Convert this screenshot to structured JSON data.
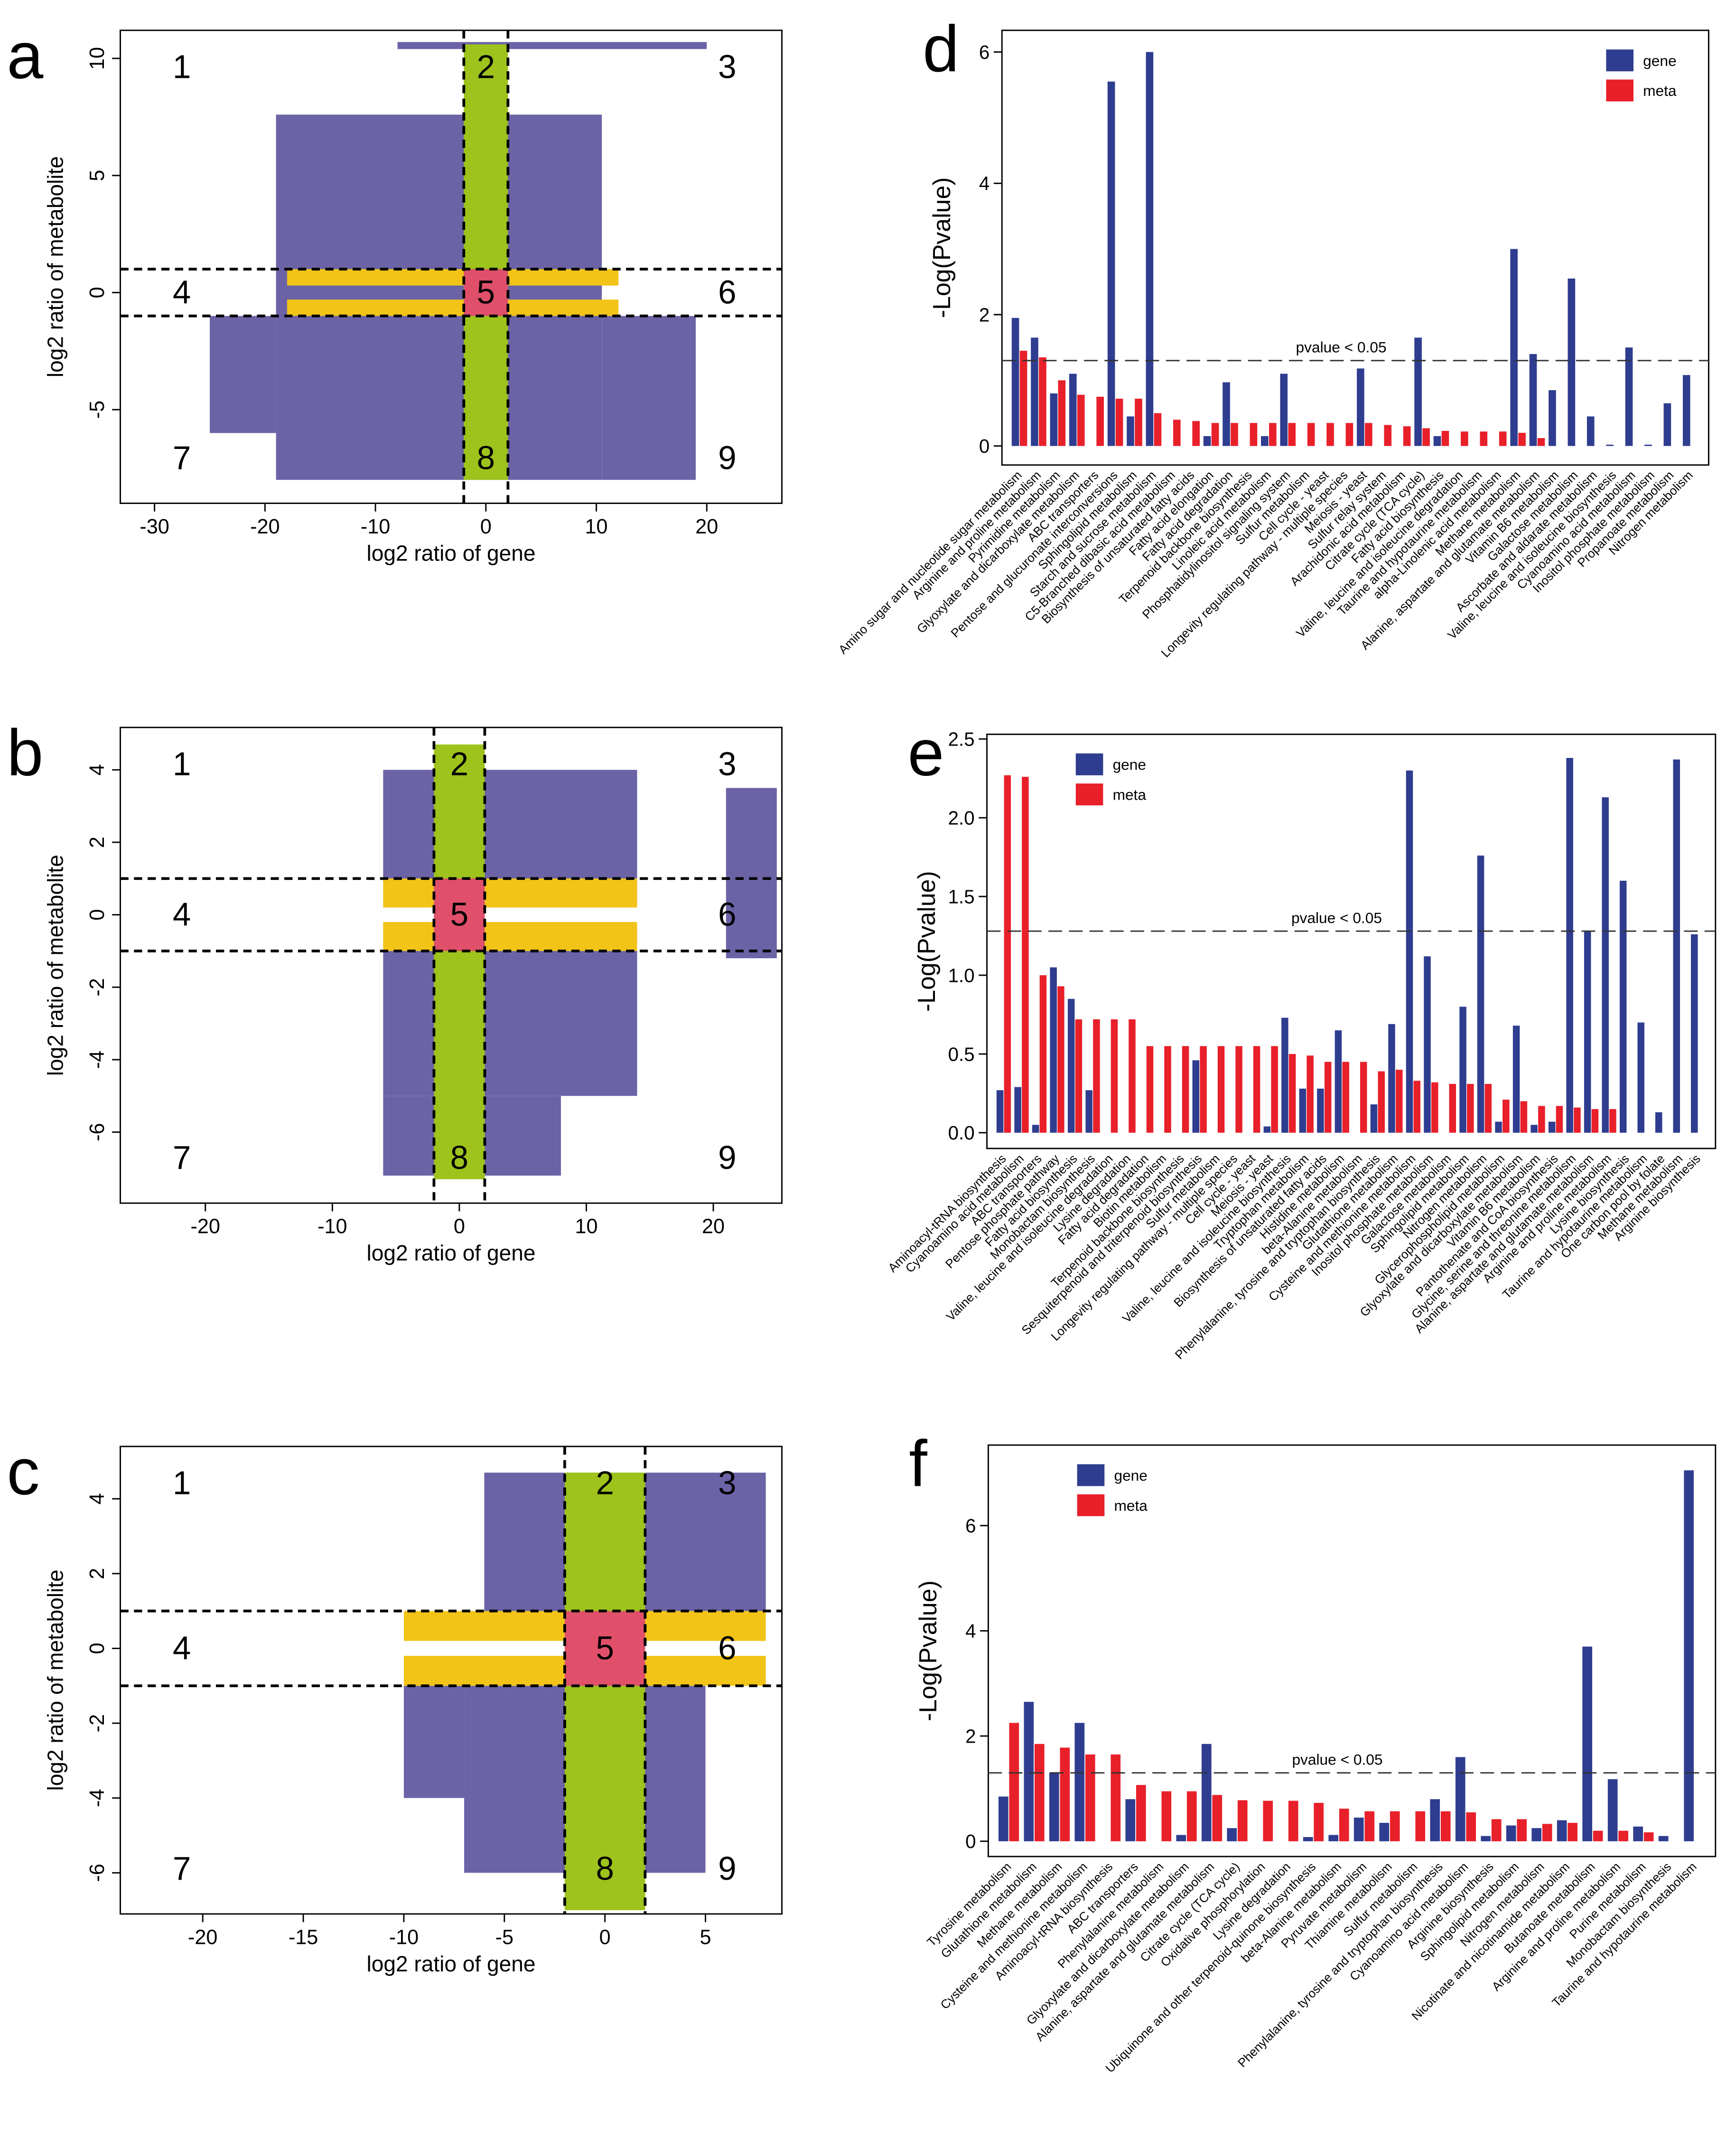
{
  "chart_data": [
    {
      "type": "scatter",
      "label": "a",
      "xlabel": "log2 ratio of gene",
      "ylabel": "log2 ratio of metabolite",
      "xlim": [
        -33.1,
        26.8
      ],
      "ylim": [
        -9,
        11.2
      ],
      "xticks": [
        -30,
        -20,
        -10,
        0,
        10,
        20
      ],
      "yticks": [
        -5,
        0,
        5,
        10
      ],
      "vlines": [
        -2,
        2
      ],
      "hlines": [
        -1,
        1
      ],
      "quadrants": [
        "1",
        "2",
        "3",
        "4",
        "5",
        "6",
        "7",
        "8",
        "9"
      ],
      "regions": [
        {
          "x": [
            -19,
            10.5
          ],
          "y": [
            -8,
            7.6
          ],
          "color": "#6b63a6"
        },
        {
          "x": [
            -8,
            20
          ],
          "y": [
            10.4,
            10.7
          ],
          "color": "#6b63a6"
        },
        {
          "x": [
            -25,
            -19
          ],
          "y": [
            -6,
            -1
          ],
          "color": "#6b63a6"
        },
        {
          "x": [
            10.5,
            19
          ],
          "y": [
            -8,
            -1
          ],
          "color": "#6b63a6"
        },
        {
          "x": [
            -18,
            12
          ],
          "y": [
            0.3,
            1
          ],
          "color": "#f2c418"
        },
        {
          "x": [
            -18,
            12
          ],
          "y": [
            -1,
            -0.3
          ],
          "color": "#f2c418"
        },
        {
          "x": [
            -2,
            2
          ],
          "y": [
            -8,
            10.6
          ],
          "color": "#9dc31c"
        },
        {
          "x": [
            -2,
            2
          ],
          "y": [
            -1,
            1
          ],
          "color": "#e0506a"
        }
      ]
    },
    {
      "type": "bar",
      "label": "d",
      "ylabel": "-Log(Pvalue)",
      "ylim": [
        -0.29,
        6.33
      ],
      "yticks": [
        0,
        2,
        4,
        6
      ],
      "threshold": 1.3,
      "annotation": "pvalue < 0.05",
      "legend": "top-right",
      "categories": [
        "Amino sugar and nucleotide sugar metabolism",
        "Arginine and proline metabolism",
        "Pyrimidine metabolism",
        "Glyoxylate and dicarboxylate metabolism",
        "ABC transporters",
        "Pentose and glucuronate interconversions",
        "Sphingolipid metabolism",
        "Starch and sucrose metabolism",
        "C5-Branched dibasic acid metabolism",
        "Biosynthesis of unsaturated fatty acids",
        "Fatty acid elongation",
        "Fatty acid degradation",
        "Terpenoid backbone biosynthesis",
        "Linoleic acid metabolism",
        "Phosphatidylinositol signaling system",
        "Sulfur metabolism",
        "Cell cycle - yeast",
        "Longevity regulating pathway - multiple species",
        "Meiosis - yeast",
        "Sulfur relay system",
        "Arachidonic acid metabolism",
        "Citrate cycle (TCA cycle)",
        "Fatty acid biosynthesis",
        "Valine, leucine and isoleucine degradation",
        "Taurine and hypotaurine metabolism",
        "alpha-Linolenic acid metabolism",
        "Methane metabolism",
        "Alanine, aspartate and glutamate metabolism",
        "Vitamin B6 metabolism",
        "Galactose metabolism",
        "Ascorbate and aldarate metabolism",
        "Valine, leucine and isoleucine biosynthesis",
        "Cyanoamino acid metabolism",
        "Inositol phosphate metabolism",
        "Propanoate metabolism",
        "Nitrogen metabolism"
      ],
      "series": [
        {
          "name": "gene",
          "color": "#2e3d8f",
          "values": [
            1.95,
            1.65,
            0.8,
            1.1,
            0,
            5.55,
            0.45,
            6.0,
            0,
            0,
            0.15,
            0.97,
            0,
            0.15,
            1.1,
            0,
            0,
            0,
            1.18,
            0,
            0,
            1.65,
            0.15,
            0,
            0,
            0,
            3.0,
            1.4,
            0.85,
            2.55,
            0.45,
            0.02,
            1.5,
            0.02,
            0.65,
            1.08
          ]
        },
        {
          "name": "meta",
          "color": "#e8202a",
          "values": [
            1.45,
            1.35,
            1.0,
            0.78,
            0.75,
            0.72,
            0.72,
            0.5,
            0.4,
            0.38,
            0.35,
            0.35,
            0.35,
            0.35,
            0.35,
            0.35,
            0.35,
            0.35,
            0.35,
            0.32,
            0.3,
            0.27,
            0.23,
            0.22,
            0.22,
            0.22,
            0.2,
            0.12,
            0,
            0,
            0,
            0,
            0,
            0,
            0,
            0
          ]
        }
      ]
    },
    {
      "type": "scatter",
      "label": "b",
      "xlabel": "log2 ratio of gene",
      "ylabel": "log2 ratio of metabolite",
      "xlim": [
        -26.7,
        25.4
      ],
      "ylim": [
        -7.96,
        5.17
      ],
      "xticks": [
        -20,
        -10,
        0,
        10,
        20
      ],
      "yticks": [
        -6,
        -4,
        -2,
        0,
        2,
        4
      ],
      "vlines": [
        -2,
        2
      ],
      "hlines": [
        -1,
        1
      ],
      "quadrants": [
        "1",
        "2",
        "3",
        "4",
        "5",
        "6",
        "7",
        "8",
        "9"
      ],
      "regions": [
        {
          "x": [
            -6,
            14
          ],
          "y": [
            1,
            4
          ],
          "color": "#6b63a6"
        },
        {
          "x": [
            -6,
            14
          ],
          "y": [
            -5,
            -1
          ],
          "color": "#6b63a6"
        },
        {
          "x": [
            -6,
            8
          ],
          "y": [
            -7.2,
            -5
          ],
          "color": "#6b63a6"
        },
        {
          "x": [
            21,
            25
          ],
          "y": [
            -1.2,
            3.5
          ],
          "color": "#6b63a6"
        },
        {
          "x": [
            -6,
            14
          ],
          "y": [
            0.2,
            1
          ],
          "color": "#f2c418"
        },
        {
          "x": [
            -6,
            14
          ],
          "y": [
            -1,
            -0.2
          ],
          "color": "#f2c418"
        },
        {
          "x": [
            -2,
            2
          ],
          "y": [
            -7.3,
            4.7
          ],
          "color": "#9dc31c"
        },
        {
          "x": [
            -2,
            2
          ],
          "y": [
            -1,
            1
          ],
          "color": "#e0506a"
        }
      ]
    },
    {
      "type": "bar",
      "label": "e",
      "ylabel": "-Log(Pvalue)",
      "ylim": [
        -0.1,
        2.53
      ],
      "yticks": [
        {
          "value": 0,
          "label": "0.0"
        },
        0.5,
        {
          "value": 1,
          "label": "1.0"
        },
        1.5,
        {
          "value": 2,
          "label": "2.0"
        },
        2.5
      ],
      "threshold": 1.28,
      "annotation": "pvalue < 0.05",
      "legend": "top-left",
      "categories": [
        "Aminoacyl-tRNA biosynthesis",
        "Cyanoamino acid metabolism",
        "ABC transporters",
        "Pentose phosphate pathway",
        "Fatty acid biosynthesis",
        "Monobactam biosynthesis",
        "Valine, leucine and isoleucine degradation",
        "Lysine degradation",
        "Fatty acid degradation",
        "Biotin metabolism",
        "Terpenoid backbone biosynthesis",
        "Sesquiterpenoid and triterpenoid biosynthesis",
        "Sulfur metabolism",
        "Longevity regulating pathway - multiple species",
        "Cell cycle - yeast",
        "Meiosis - yeast",
        "Valine, leucine and isoleucine biosynthesis",
        "Tryptophan metabolism",
        "Biosynthesis of unsaturated fatty acids",
        "Histidine metabolism",
        "beta-Alanine metabolism",
        "Phenylalanine, tyrosine and tryptophan biosynthesis",
        "Glutathione metabolism",
        "Cysteine and methionine metabolism",
        "Inositol phosphate metabolism",
        "Galactose metabolism",
        "Sphingolipid metabolism",
        "Nitrogen metabolism",
        "Glycerophospholipid metabolism",
        "Glyoxylate and dicarboxylate metabolism",
        "Vitamin B6 metabolism",
        "Pantothenate and CoA biosynthesis",
        "Glycine, serine and threonine metabolism",
        "Alanine, aspartate and glutamate metabolism",
        "Arginine and proline metabolism",
        "Lysine biosynthesis",
        "Taurine and hypotaurine metabolism",
        "One carbon pool by folate",
        "Methane metabolism",
        "Arginine biosynthesis"
      ],
      "series": [
        {
          "name": "gene",
          "color": "#2e3d8f",
          "values": [
            0.27,
            0.29,
            0.05,
            1.05,
            0.85,
            0.27,
            0,
            0,
            0,
            0,
            0,
            0.46,
            0,
            0,
            0,
            0.04,
            0.73,
            0.28,
            0.28,
            0.65,
            0,
            0.18,
            0.69,
            2.3,
            1.12,
            0,
            0.8,
            1.76,
            0.07,
            0.68,
            0.05,
            0.07,
            2.38,
            1.28,
            2.13,
            1.6,
            0.7,
            0.13,
            2.37,
            1.26
          ]
        },
        {
          "name": "meta",
          "color": "#e8202a",
          "values": [
            2.27,
            2.26,
            1.0,
            0.93,
            0.72,
            0.72,
            0.72,
            0.72,
            0.55,
            0.55,
            0.55,
            0.55,
            0.55,
            0.55,
            0.55,
            0.55,
            0.5,
            0.49,
            0.45,
            0.45,
            0.45,
            0.39,
            0.4,
            0.33,
            0.32,
            0.31,
            0.31,
            0.31,
            0.21,
            0.2,
            0.17,
            0.17,
            0.16,
            0.15,
            0.15,
            0,
            0,
            0,
            0,
            0
          ]
        }
      ]
    },
    {
      "type": "scatter",
      "label": "c",
      "xlabel": "log2 ratio of gene",
      "ylabel": "log2 ratio of metabolite",
      "xlim": [
        -24.1,
        8.8
      ],
      "ylim": [
        -7.1,
        5.4
      ],
      "xticks": [
        -20,
        -15,
        -10,
        -5,
        0,
        5
      ],
      "yticks": [
        -6,
        -4,
        -2,
        0,
        2,
        4
      ],
      "vlines": [
        -2,
        2
      ],
      "hlines": [
        -1,
        1
      ],
      "quadrants": [
        "1",
        "2",
        "3",
        "4",
        "5",
        "6",
        "7",
        "8",
        "9"
      ],
      "regions": [
        {
          "x": [
            -6,
            8
          ],
          "y": [
            1,
            4.7
          ],
          "color": "#6b63a6"
        },
        {
          "x": [
            -7,
            5
          ],
          "y": [
            -6,
            -1
          ],
          "color": "#6b63a6"
        },
        {
          "x": [
            -10,
            -7
          ],
          "y": [
            -4,
            -1
          ],
          "color": "#6b63a6"
        },
        {
          "x": [
            -10,
            8
          ],
          "y": [
            0.2,
            1
          ],
          "color": "#f2c418"
        },
        {
          "x": [
            -10,
            8
          ],
          "y": [
            -1,
            -0.2
          ],
          "color": "#f2c418"
        },
        {
          "x": [
            -2,
            2
          ],
          "y": [
            -7,
            4.7
          ],
          "color": "#9dc31c"
        },
        {
          "x": [
            -2,
            2
          ],
          "y": [
            -1,
            1
          ],
          "color": "#e0506a"
        }
      ]
    },
    {
      "type": "bar",
      "label": "f",
      "ylabel": "-Log(Pvalue)",
      "ylim": [
        -0.29,
        7.53
      ],
      "yticks": [
        0,
        2,
        4,
        6
      ],
      "threshold": 1.3,
      "annotation": "pvalue < 0.05",
      "legend": "top-left",
      "categories": [
        "Tyrosine metabolism",
        "Glutathione metabolism",
        "Methane metabolism",
        "Cysteine and methionine metabolism",
        "Aminoacyl-tRNA biosynthesis",
        "ABC transporters",
        "Phenylalanine metabolism",
        "Glyoxylate and dicarboxylate metabolism",
        "Alanine, aspartate and glutamate metabolism",
        "Citrate cycle (TCA cycle)",
        "Oxidative phosphorylation",
        "Lysine degradation",
        "Ubiquinone and other terpenoid-quinone biosynthesis",
        "beta-Alanine metabolism",
        "Pyruvate metabolism",
        "Thiamine metabolism",
        "Sulfur metabolism",
        "Phenylalanine, tyrosine and tryptophan biosynthesis",
        "Cyanoamino acid metabolism",
        "Arginine biosynthesis",
        "Sphingolipid metabolism",
        "Nitrogen metabolism",
        "Nicotinate and nicotinamide metabolism",
        "Butanoate metabolism",
        "Arginine and proline metabolism",
        "Purine metabolism",
        "Monobactam biosynthesis",
        "Taurine and hypotaurine metabolism"
      ],
      "series": [
        {
          "name": "gene",
          "color": "#2e3d8f",
          "values": [
            0.85,
            2.65,
            1.3,
            2.25,
            0,
            0.8,
            0,
            0.12,
            1.85,
            0.25,
            0,
            0,
            0.08,
            0.12,
            0.45,
            0.35,
            0,
            0.8,
            1.6,
            0.1,
            0.3,
            0.25,
            0.4,
            3.7,
            1.18,
            0.28,
            0.1,
            7.05
          ]
        },
        {
          "name": "meta",
          "color": "#e8202a",
          "values": [
            2.25,
            1.85,
            1.78,
            1.65,
            1.65,
            1.07,
            0.95,
            0.95,
            0.88,
            0.78,
            0.77,
            0.77,
            0.73,
            0.62,
            0.57,
            0.57,
            0.57,
            0.57,
            0.55,
            0.42,
            0.42,
            0.33,
            0.35,
            0.2,
            0.2,
            0.17,
            0,
            0
          ]
        }
      ]
    }
  ]
}
